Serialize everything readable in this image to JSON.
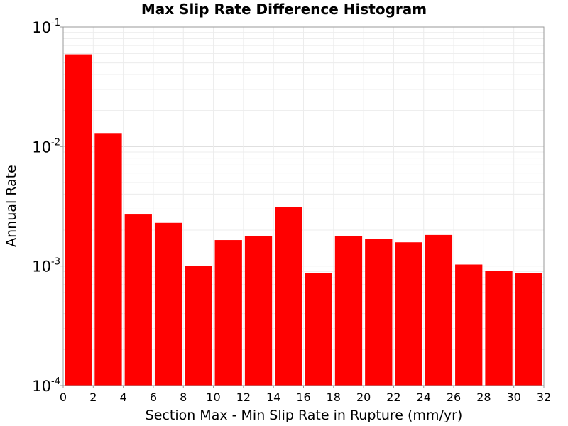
{
  "chart_data": {
    "type": "bar",
    "title": "Max Slip Rate Difference Histogram",
    "xlabel": "Section Max - Min Slip Rate in Rupture (mm/yr)",
    "ylabel": "Annual Rate",
    "y_scale": "log",
    "xlim": [
      0,
      32
    ],
    "ylim": [
      0.0001,
      0.1
    ],
    "bin_width": 2,
    "x": [
      1,
      3,
      5,
      7,
      9,
      11,
      13,
      15,
      17,
      19,
      21,
      23,
      25,
      27,
      29,
      31
    ],
    "values": [
      0.059,
      0.0128,
      0.0027,
      0.0023,
      0.001,
      0.00165,
      0.00177,
      0.0031,
      0.00088,
      0.00178,
      0.00168,
      0.00158,
      0.00182,
      0.00103,
      0.00091,
      0.00088
    ],
    "x_ticks": [
      "0",
      "2",
      "4",
      "6",
      "8",
      "10",
      "12",
      "14",
      "16",
      "18",
      "20",
      "22",
      "24",
      "26",
      "28",
      "30",
      "32"
    ],
    "y_ticks": [
      {
        "base": "10",
        "exp": "-4"
      },
      {
        "base": "10",
        "exp": "-3"
      },
      {
        "base": "10",
        "exp": "-2"
      },
      {
        "base": "10",
        "exp": "-1"
      }
    ],
    "grid": true,
    "bar_color": "#ff0000"
  }
}
